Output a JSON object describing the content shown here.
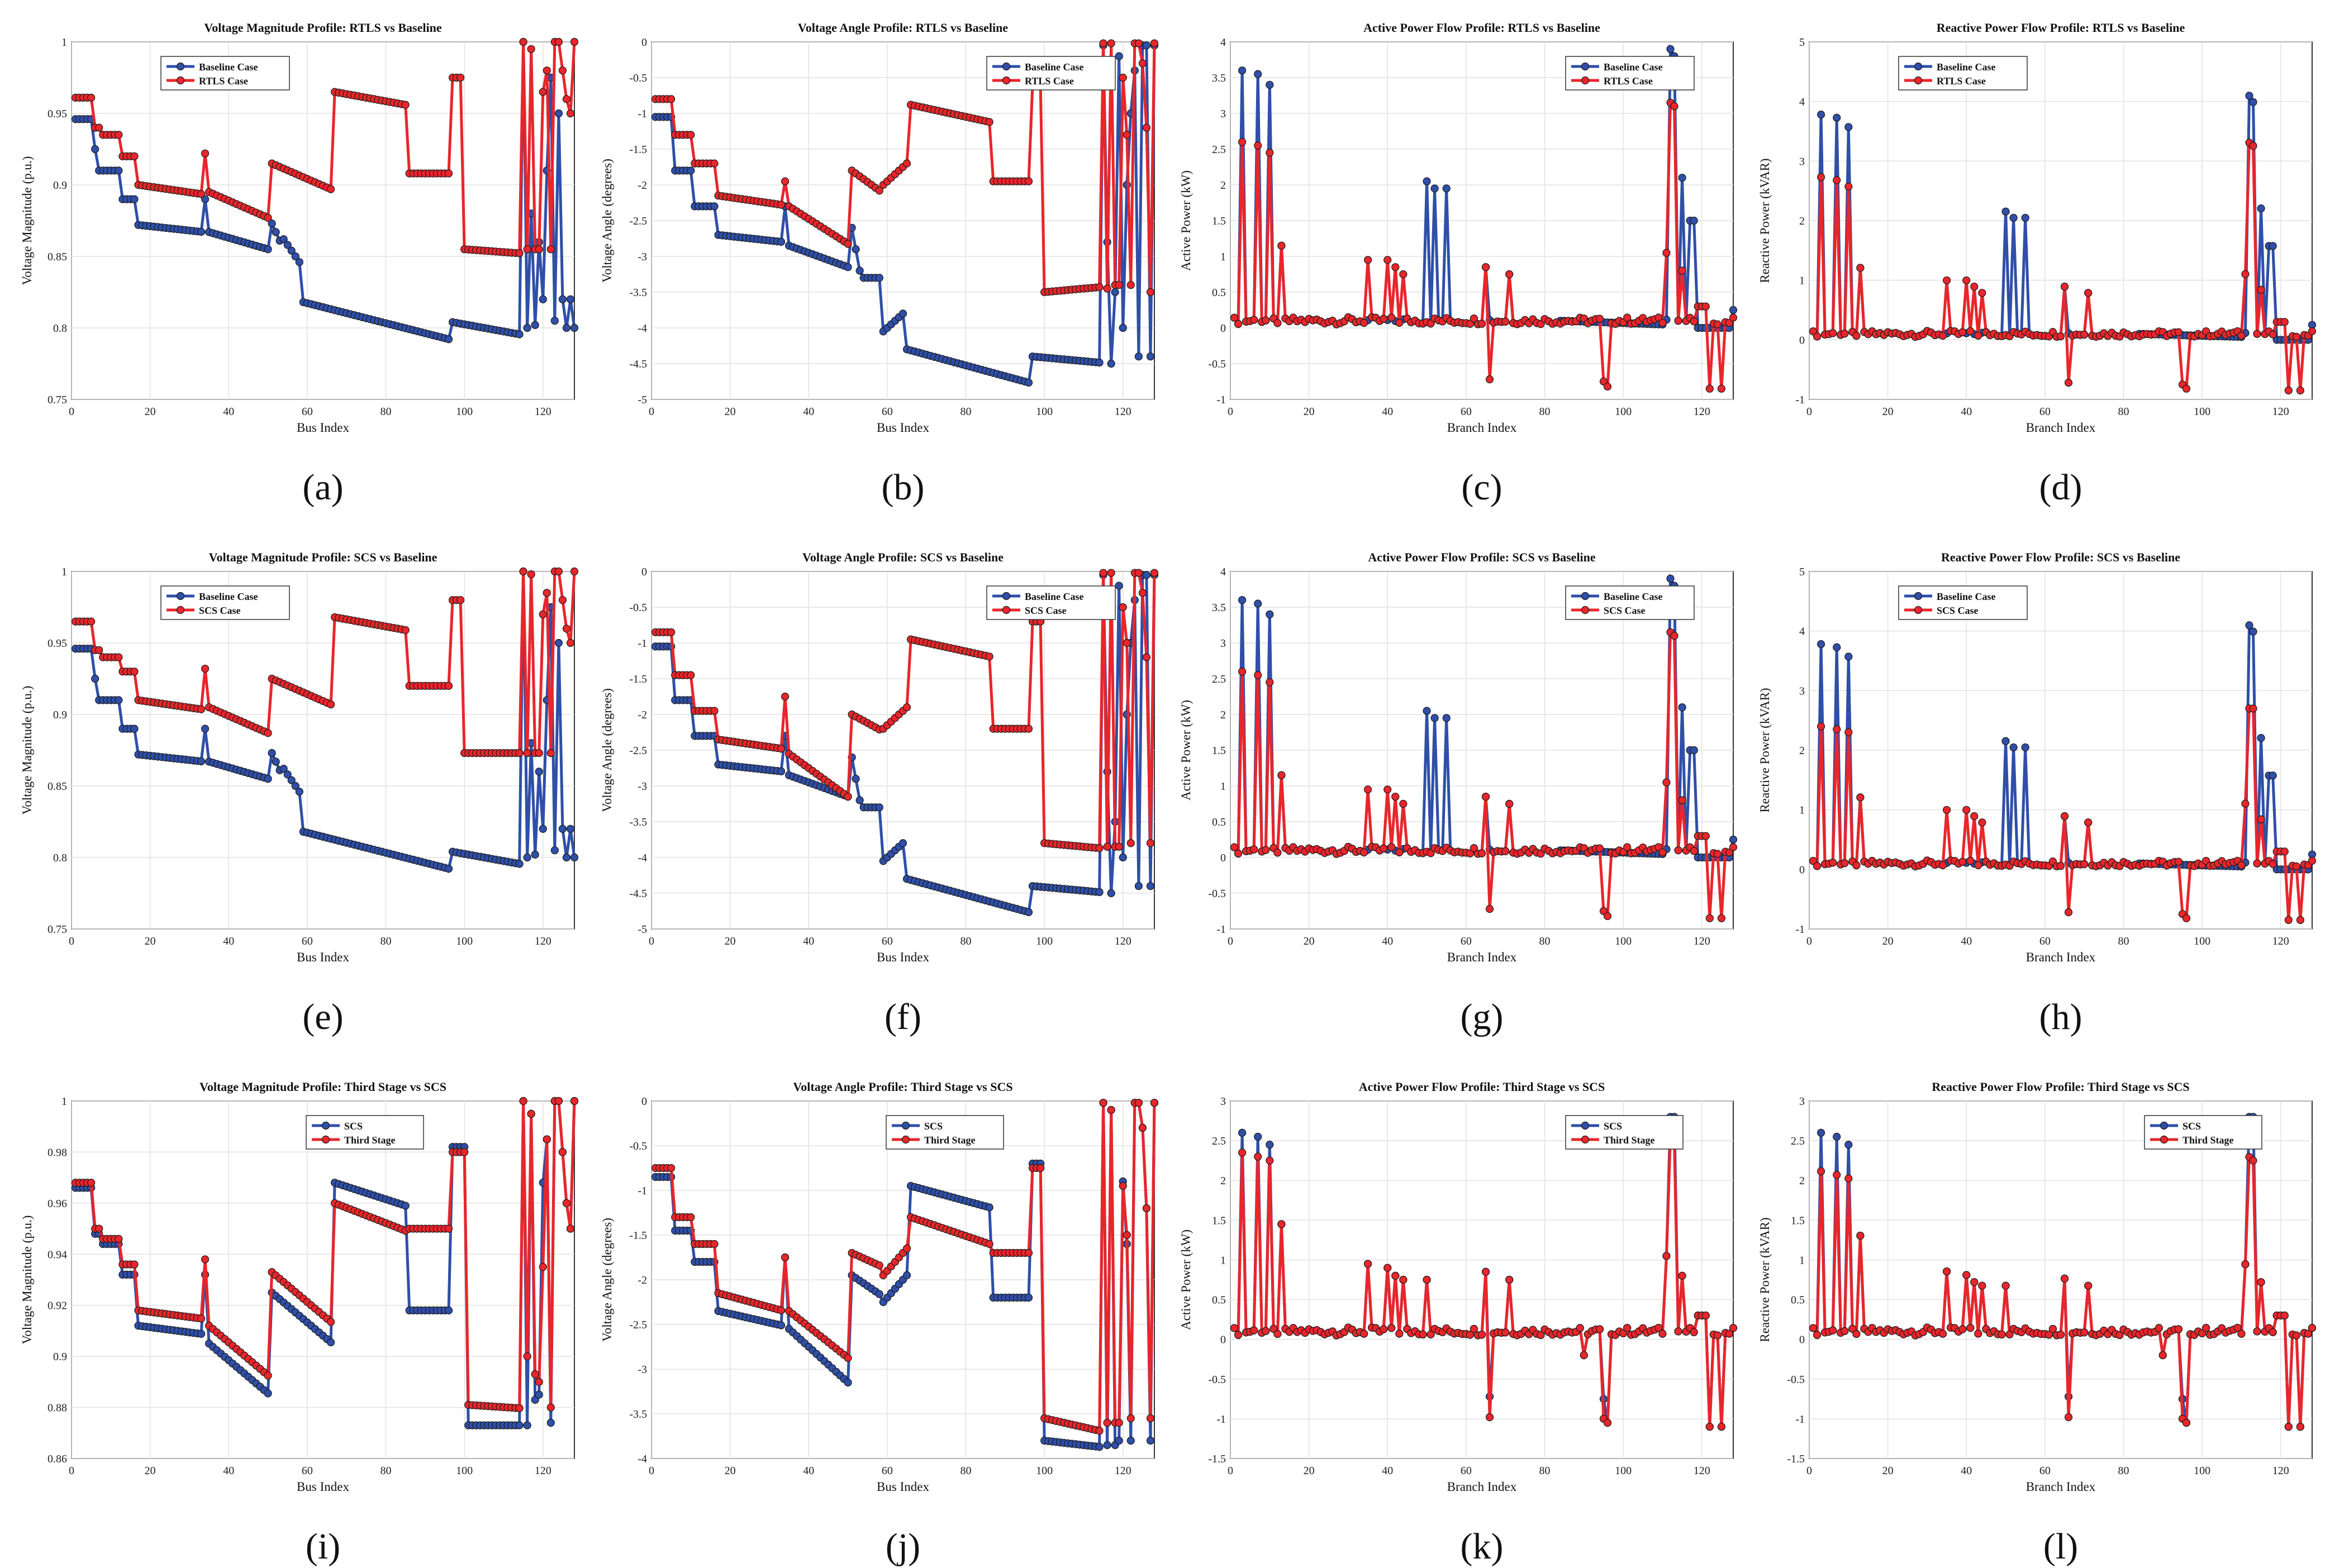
{
  "colors": {
    "baseline": "#2f4fa8",
    "rtls": "#e8262b",
    "scs_blue": "#2f4fa8",
    "third": "#e8262b"
  },
  "chart_data": [
    {
      "id": "a",
      "caption": "(a)",
      "type": "line",
      "title": "Voltage Magnitude Profile: RTLS vs Baseline",
      "xlabel": "Bus Index",
      "ylabel": "Voltage Magnitude (p.u.)",
      "xlim": [
        0,
        128
      ],
      "ylim": [
        0.75,
        1.0
      ],
      "xticks": [
        0,
        20,
        40,
        60,
        80,
        100,
        120
      ],
      "yticks": [
        0.75,
        0.8,
        0.85,
        0.9,
        0.95,
        1
      ],
      "legend": "top-left",
      "series": [
        {
          "name": "Baseline Case",
          "color": "#2f4fa8",
          "kind": "vmag_base",
          "variant": "base",
          "offset": 0
        },
        {
          "name": "RTLS Case",
          "color": "#e8262b",
          "kind": "vmag_rtls",
          "variant": "rtls",
          "offset": 0
        }
      ]
    },
    {
      "id": "b",
      "caption": "(b)",
      "type": "line",
      "title": "Voltage Angle Profile: RTLS vs Baseline",
      "xlabel": "Bus Index",
      "ylabel": "Voltage Angle (degrees)",
      "xlim": [
        0,
        128
      ],
      "ylim": [
        -5,
        0
      ],
      "xticks": [
        0,
        20,
        40,
        60,
        80,
        100,
        120
      ],
      "yticks": [
        -5,
        -4.5,
        -4,
        -3.5,
        -3,
        -2.5,
        -2,
        -1.5,
        -1,
        -0.5,
        0
      ],
      "legend": "top-right",
      "series": [
        {
          "name": "Baseline Case",
          "color": "#2f4fa8",
          "kind": "vang_base"
        },
        {
          "name": "RTLS Case",
          "color": "#e8262b",
          "kind": "vang_rtls"
        }
      ]
    },
    {
      "id": "c",
      "caption": "(c)",
      "type": "line",
      "title": "Active Power Flow Profile: RTLS vs Baseline",
      "xlabel": "Branch Index",
      "ylabel": "Active Power (kW)",
      "xlim": [
        0,
        128
      ],
      "ylim": [
        -1,
        4
      ],
      "xticks": [
        0,
        20,
        40,
        60,
        80,
        100,
        120
      ],
      "yticks": [
        -1,
        -0.5,
        0,
        0.5,
        1,
        1.5,
        2,
        2.5,
        3,
        3.5,
        4
      ],
      "legend": "top-right",
      "series": [
        {
          "name": "Baseline Case",
          "color": "#2f4fa8",
          "kind": "p_base"
        },
        {
          "name": "RTLS Case",
          "color": "#e8262b",
          "kind": "p_rtls"
        }
      ]
    },
    {
      "id": "d",
      "caption": "(d)",
      "type": "line",
      "title": "Reactive Power Flow Profile: RTLS vs Baseline",
      "xlabel": "Branch Index",
      "ylabel": "Reactive Power (kVAR)",
      "xlim": [
        0,
        128
      ],
      "ylim": [
        -1,
        5
      ],
      "xticks": [
        0,
        20,
        40,
        60,
        80,
        100,
        120
      ],
      "yticks": [
        -1,
        0,
        1,
        2,
        3,
        4,
        5
      ],
      "legend": "top-left",
      "series": [
        {
          "name": "Baseline Case",
          "color": "#2f4fa8",
          "kind": "q_base"
        },
        {
          "name": "RTLS Case",
          "color": "#e8262b",
          "kind": "q_rtls"
        }
      ]
    },
    {
      "id": "e",
      "caption": "(e)",
      "type": "line",
      "title": "Voltage Magnitude Profile: SCS vs Baseline",
      "xlabel": "Bus Index",
      "ylabel": "Voltage Magnitude (p.u.)",
      "xlim": [
        0,
        128
      ],
      "ylim": [
        0.75,
        1.0
      ],
      "xticks": [
        0,
        20,
        40,
        60,
        80,
        100,
        120
      ],
      "yticks": [
        0.75,
        0.8,
        0.85,
        0.9,
        0.95,
        1
      ],
      "legend": "top-left",
      "series": [
        {
          "name": "Baseline Case",
          "color": "#2f4fa8",
          "kind": "vmag_base"
        },
        {
          "name": "SCS Case",
          "color": "#e8262b",
          "kind": "vmag_scs"
        }
      ]
    },
    {
      "id": "f",
      "caption": "(f)",
      "type": "line",
      "title": "Voltage Angle Profile: SCS vs Baseline",
      "xlabel": "Bus Index",
      "ylabel": "Voltage Angle (degrees)",
      "xlim": [
        0,
        128
      ],
      "ylim": [
        -5,
        0
      ],
      "xticks": [
        0,
        20,
        40,
        60,
        80,
        100,
        120
      ],
      "yticks": [
        -5,
        -4.5,
        -4,
        -3.5,
        -3,
        -2.5,
        -2,
        -1.5,
        -1,
        -0.5,
        0
      ],
      "legend": "top-right",
      "series": [
        {
          "name": "Baseline Case",
          "color": "#2f4fa8",
          "kind": "vang_base"
        },
        {
          "name": "SCS Case",
          "color": "#e8262b",
          "kind": "vang_scs"
        }
      ]
    },
    {
      "id": "g",
      "caption": "(g)",
      "type": "line",
      "title": "Active Power Flow Profile: SCS vs Baseline",
      "xlabel": "Branch Index",
      "ylabel": "Active Power (kW)",
      "xlim": [
        0,
        128
      ],
      "ylim": [
        -1,
        4
      ],
      "xticks": [
        0,
        20,
        40,
        60,
        80,
        100,
        120
      ],
      "yticks": [
        -1,
        -0.5,
        0,
        0.5,
        1,
        1.5,
        2,
        2.5,
        3,
        3.5,
        4
      ],
      "legend": "top-right",
      "series": [
        {
          "name": "Baseline Case",
          "color": "#2f4fa8",
          "kind": "p_base"
        },
        {
          "name": "SCS Case",
          "color": "#e8262b",
          "kind": "p_rtls"
        }
      ]
    },
    {
      "id": "h",
      "caption": "(h)",
      "type": "line",
      "title": "Reactive Power Flow Profile: SCS vs Baseline",
      "xlabel": "Branch Index",
      "ylabel": "Reactive Power (kVAR)",
      "xlim": [
        0,
        128
      ],
      "ylim": [
        -1,
        5
      ],
      "xticks": [
        0,
        20,
        40,
        60,
        80,
        100,
        120
      ],
      "yticks": [
        -1,
        0,
        1,
        2,
        3,
        4,
        5
      ],
      "legend": "top-left",
      "series": [
        {
          "name": "Baseline Case",
          "color": "#2f4fa8",
          "kind": "q_base"
        },
        {
          "name": "SCS Case",
          "color": "#e8262b",
          "kind": "q_scs"
        }
      ]
    },
    {
      "id": "i",
      "caption": "(i)",
      "type": "line",
      "title": "Voltage Magnitude Profile: Third Stage vs SCS",
      "xlabel": "Bus Index",
      "ylabel": "Voltage Magnitude (p.u.)",
      "xlim": [
        0,
        128
      ],
      "ylim": [
        0.86,
        1.0
      ],
      "xticks": [
        0,
        20,
        40,
        60,
        80,
        100,
        120
      ],
      "yticks": [
        0.86,
        0.88,
        0.9,
        0.92,
        0.94,
        0.96,
        0.98,
        1
      ],
      "legend": "top-center",
      "series": [
        {
          "name": "SCS",
          "color": "#2f4fa8",
          "kind": "vmag_scs3"
        },
        {
          "name": "Third Stage",
          "color": "#e8262b",
          "kind": "vmag_third"
        }
      ]
    },
    {
      "id": "j",
      "caption": "(j)",
      "type": "line",
      "title": "Voltage Angle Profile: Third Stage vs SCS",
      "xlabel": "Bus Index",
      "ylabel": "Voltage Angle (degrees)",
      "xlim": [
        0,
        128
      ],
      "ylim": [
        -4,
        0
      ],
      "xticks": [
        0,
        20,
        40,
        60,
        80,
        100,
        120
      ],
      "yticks": [
        -4,
        -3.5,
        -3,
        -2.5,
        -2,
        -1.5,
        -1,
        -0.5,
        0
      ],
      "legend": "top-center",
      "series": [
        {
          "name": "SCS",
          "color": "#2f4fa8",
          "kind": "vang_scs3"
        },
        {
          "name": "Third Stage",
          "color": "#e8262b",
          "kind": "vang_third"
        }
      ]
    },
    {
      "id": "k",
      "caption": "(k)",
      "type": "line",
      "title": "Active Power Flow Profile: Third Stage vs SCS",
      "xlabel": "Branch Index",
      "ylabel": "Active Power (kW)",
      "xlim": [
        0,
        128
      ],
      "ylim": [
        -1.5,
        3
      ],
      "xticks": [
        0,
        20,
        40,
        60,
        80,
        100,
        120
      ],
      "yticks": [
        -1.5,
        -1,
        -0.5,
        0,
        0.5,
        1,
        1.5,
        2,
        2.5,
        3
      ],
      "legend": "top-right",
      "series": [
        {
          "name": "SCS",
          "color": "#2f4fa8",
          "kind": "p_scs3"
        },
        {
          "name": "Third Stage",
          "color": "#e8262b",
          "kind": "p_third"
        }
      ]
    },
    {
      "id": "l",
      "caption": "(l)",
      "type": "line",
      "title": "Reactive Power Flow Profile: Third Stage vs SCS",
      "xlabel": "Branch Index",
      "ylabel": "Reactive Power (kVAR)",
      "xlim": [
        0,
        128
      ],
      "ylim": [
        -1.5,
        3
      ],
      "xticks": [
        0,
        20,
        40,
        60,
        80,
        100,
        120
      ],
      "yticks": [
        -1.5,
        -1,
        -0.5,
        0,
        0.5,
        1,
        1.5,
        2,
        2.5,
        3
      ],
      "legend": "top-right",
      "series": [
        {
          "name": "SCS",
          "color": "#2f4fa8",
          "kind": "q_scs3"
        },
        {
          "name": "Third Stage",
          "color": "#e8262b",
          "kind": "q_third"
        }
      ]
    }
  ]
}
